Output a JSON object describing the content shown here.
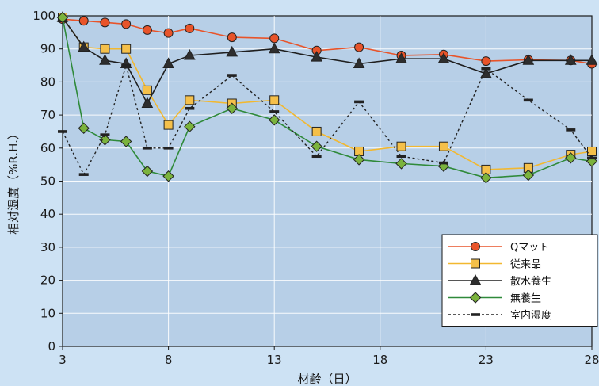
{
  "chart_data": {
    "type": "line",
    "xlabel": "材齢（日）",
    "ylabel": "相対湿度（%R.H.）",
    "xlim": [
      3,
      28
    ],
    "ylim": [
      0,
      100
    ],
    "xticks": [
      3,
      8,
      13,
      18,
      23,
      28
    ],
    "yticks": [
      0,
      10,
      20,
      30,
      40,
      50,
      60,
      70,
      80,
      90,
      100
    ],
    "grid": true,
    "legend_position": "bottom-right",
    "series": [
      {
        "name": "Qマット",
        "color": "#e8542a",
        "line_color": "#e8542a",
        "marker": "circle",
        "dash": false,
        "x": [
          3,
          4,
          5,
          6,
          7,
          8,
          9,
          11,
          13,
          15,
          17,
          19,
          21,
          23,
          25,
          27,
          28
        ],
        "values": [
          99,
          98.5,
          98,
          97.5,
          95.7,
          94.8,
          96.2,
          93.5,
          93.2,
          89.5,
          90.5,
          88,
          88.3,
          86.3,
          86.7,
          86.5,
          85.5
        ]
      },
      {
        "name": "従来品",
        "color": "#f5c04a",
        "line_color": "#f2b830",
        "marker": "square",
        "dash": false,
        "x": [
          3,
          4,
          5,
          6,
          7,
          8,
          9,
          11,
          13,
          15,
          17,
          19,
          21,
          23,
          25,
          27,
          28
        ],
        "values": [
          99.5,
          90.5,
          90,
          90,
          77.5,
          67,
          74.5,
          73.5,
          74.5,
          65,
          59,
          60.5,
          60.5,
          53.5,
          54,
          58,
          59
        ]
      },
      {
        "name": "散水養生",
        "color": "#2e2e2e",
        "line_color": "#1f1f1f",
        "marker": "triangle",
        "dash": false,
        "x": [
          3,
          4,
          5,
          6,
          7,
          8,
          9,
          11,
          13,
          15,
          17,
          19,
          21,
          23,
          25,
          27,
          28
        ],
        "values": [
          99.5,
          90.5,
          86.5,
          85.5,
          73.5,
          85.5,
          88,
          89,
          90,
          87.5,
          85.5,
          87,
          87,
          82.5,
          86.5,
          86.5,
          86.5
        ]
      },
      {
        "name": "無養生",
        "color": "#7bb33d",
        "line_color": "#2f8a3a",
        "marker": "diamond",
        "dash": false,
        "x": [
          3,
          4,
          5,
          6,
          7,
          8,
          9,
          11,
          13,
          15,
          17,
          19,
          21,
          23,
          25,
          27,
          28
        ],
        "values": [
          99.5,
          66,
          62.5,
          62,
          53,
          51.5,
          66.5,
          72,
          68.5,
          60.5,
          56.5,
          55.3,
          54.5,
          51,
          51.8,
          57,
          56
        ]
      },
      {
        "name": "室内湿度",
        "color": "#222222",
        "line_color": "#222222",
        "marker": "dash",
        "dash": true,
        "x": [
          3,
          4,
          5,
          6,
          7,
          8,
          9,
          11,
          13,
          15,
          17,
          19,
          21,
          23,
          25,
          27,
          28
        ],
        "values": [
          65,
          52,
          64,
          85,
          60,
          60,
          72,
          82,
          71,
          57.5,
          74,
          57.5,
          55.5,
          84,
          74.5,
          65.5,
          57
        ]
      }
    ]
  }
}
